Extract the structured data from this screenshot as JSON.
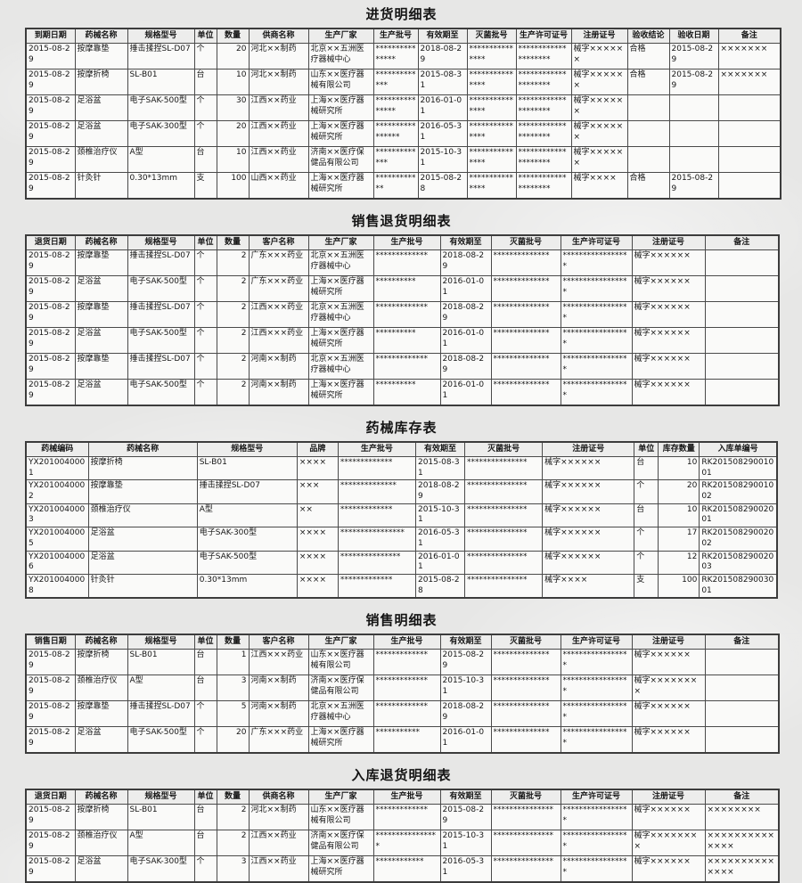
{
  "tables": [
    {
      "title": "进货明细表",
      "headers": [
        "到期日期",
        "药械名称",
        "规格型号",
        "单位",
        "数量",
        "供商名称",
        "生产厂家",
        "生产批号",
        "有效期至",
        "灭菌批号",
        "生产许可证号",
        "注册证号",
        "验收结论",
        "验收日期",
        "备注"
      ],
      "rows": [
        [
          "2015-08-29",
          "按摩靠垫",
          "捶击揉捏SL-D07",
          "个",
          "20",
          "河北××制药",
          "北京××五洲医疗器械中心",
          "***************",
          "2018-08-29",
          "***************",
          "********************",
          "械字××××××",
          "合格",
          "2015-08-29",
          "×××××××"
        ],
        [
          "2015-08-29",
          "按摩折椅",
          "SL-B01",
          "台",
          "10",
          "河北××制药",
          "山东××医疗器械有限公司",
          "*************",
          "2015-08-31",
          "***************",
          "********************",
          "械字××××××",
          "合格",
          "2015-08-29",
          "×××××××"
        ],
        [
          "2015-08-29",
          "足浴盆",
          "电子SAK-500型",
          "个",
          "30",
          "江西××药业",
          "上海××医疗器械研究所",
          "***************",
          "2016-01-01",
          "***************",
          "********************",
          "械字××××××",
          "",
          "",
          ""
        ],
        [
          "2015-08-29",
          "足浴盆",
          "电子SAK-300型",
          "个",
          "20",
          "江西××药业",
          "上海××医疗器械研究所",
          "****************",
          "2016-05-31",
          "***************",
          "********************",
          "械字××××××",
          "",
          "",
          ""
        ],
        [
          "2015-08-29",
          "颈椎治疗仪",
          "A型",
          "台",
          "10",
          "江西××药业",
          "济南××医疗保健品有限公司",
          "*************",
          "2015-10-31",
          "***************",
          "********************",
          "械字××××××",
          "",
          "",
          ""
        ],
        [
          "2015-08-29",
          "针灸针",
          "0.30*13mm",
          "支",
          "100",
          "山西××药业",
          "上海××医疗器械研究所",
          "************",
          "2015-08-28",
          "***************",
          "********************",
          "械字××××",
          "合格",
          "2015-08-29",
          ""
        ]
      ]
    },
    {
      "title": "销售退货明细表",
      "headers": [
        "退货日期",
        "药械名称",
        "规格型号",
        "单位",
        "数量",
        "客户名称",
        "生产厂家",
        "生产批号",
        "有效期至",
        "灭菌批号",
        "生产许可证号",
        "注册证号",
        "备注"
      ],
      "rows": [
        [
          "2015-08-29",
          "按摩靠垫",
          "捶击揉捏SL-D07",
          "个",
          "2",
          "广东×××药业",
          "北京××五洲医疗器械中心",
          "*************",
          "2018-08-29",
          "**************",
          "*****************",
          "械字××××××",
          ""
        ],
        [
          "2015-08-29",
          "足浴盆",
          "电子SAK-500型",
          "个",
          "2",
          "广东×××药业",
          "上海××医疗器械研究所",
          "**********",
          "2016-01-01",
          "**************",
          "*****************",
          "械字××××××",
          ""
        ],
        [
          "2015-08-29",
          "按摩靠垫",
          "捶击揉捏SL-D07",
          "个",
          "2",
          "江西×××药业",
          "北京××五洲医疗器械中心",
          "*************",
          "2018-08-29",
          "**************",
          "*****************",
          "械字××××××",
          ""
        ],
        [
          "2015-08-29",
          "足浴盆",
          "电子SAK-500型",
          "个",
          "2",
          "江西×××药业",
          "上海××医疗器械研究所",
          "**********",
          "2016-01-01",
          "**************",
          "*****************",
          "械字××××××",
          ""
        ],
        [
          "2015-08-29",
          "按摩靠垫",
          "捶击揉捏SL-D07",
          "个",
          "2",
          "河南××制药",
          "北京××五洲医疗器械中心",
          "*************",
          "2018-08-29",
          "**************",
          "*****************",
          "械字××××××",
          ""
        ],
        [
          "2015-08-29",
          "足浴盆",
          "电子SAK-500型",
          "个",
          "2",
          "河南××制药",
          "上海××医疗器械研究所",
          "**********",
          "2016-01-01",
          "**************",
          "*****************",
          "械字××××××",
          ""
        ]
      ]
    },
    {
      "title": "药械库存表",
      "headers": [
        "药械编码",
        "药械名称",
        "规格型号",
        "品牌",
        "生产批号",
        "有效期至",
        "灭菌批号",
        "注册证号",
        "单位",
        "库存数量",
        "入库单编号"
      ],
      "rows": [
        [
          "YX2010040001",
          "按摩折椅",
          "SL-B01",
          "××××",
          "*************",
          "2015-08-31",
          "***************",
          "械字××××××",
          "台",
          "10",
          "RK20150829001001"
        ],
        [
          "YX2010040002",
          "按摩靠垫",
          "捶击揉捏SL-D07",
          "×××",
          "**************",
          "2018-08-29",
          "***************",
          "械字××××××",
          "个",
          "20",
          "RK20150829001002"
        ],
        [
          "YX2010040003",
          "颈椎治疗仪",
          "A型",
          "××",
          "*************",
          "2015-10-31",
          "***************",
          "械字××××××",
          "台",
          "10",
          "RK20150829002001"
        ],
        [
          "YX2010040005",
          "足浴盆",
          "电子SAK-300型",
          "××××",
          "****************",
          "2016-05-31",
          "***************",
          "械字××××××",
          "个",
          "17",
          "RK20150829002002"
        ],
        [
          "YX2010040006",
          "足浴盆",
          "电子SAK-500型",
          "××××",
          "***************",
          "2016-01-01",
          "***************",
          "械字××××××",
          "个",
          "12",
          "RK20150829002003"
        ],
        [
          "YX2010040008",
          "针灸针",
          "0.30*13mm",
          "××××",
          "*************",
          "2015-08-28",
          "***************",
          "械字××××",
          "支",
          "100",
          "RK20150829003001"
        ]
      ]
    },
    {
      "title": "销售明细表",
      "headers": [
        "销售日期",
        "药械名称",
        "规格型号",
        "单位",
        "数量",
        "客户名称",
        "生产厂家",
        "生产批号",
        "有效期至",
        "灭菌批号",
        "生产许可证号",
        "注册证号",
        "备注"
      ],
      "rows": [
        [
          "2015-08-29",
          "按摩折椅",
          "SL-B01",
          "台",
          "1",
          "江西×××药业",
          "山东××医疗器械有限公司",
          "*************",
          "2015-08-29",
          "**************",
          "*****************",
          "械字××××××",
          ""
        ],
        [
          "2015-08-29",
          "颈椎治疗仪",
          "A型",
          "台",
          "3",
          "河南××制药",
          "济南××医疗保健品有限公司",
          "*************",
          "2015-10-31",
          "**************",
          "*****************",
          "械字××××××××",
          ""
        ],
        [
          "2015-08-29",
          "按摩靠垫",
          "捶击揉捏SL-D07",
          "个",
          "5",
          "河南××制药",
          "北京××五洲医疗器械中心",
          "*************",
          "2018-08-29",
          "**************",
          "*****************",
          "械字××××××",
          ""
        ],
        [
          "2015-08-29",
          "足浴盆",
          "电子SAK-500型",
          "个",
          "20",
          "广东×××药业",
          "上海××医疗器械研究所",
          "***********",
          "2016-01-01",
          "**************",
          "*****************",
          "械字××××××",
          ""
        ]
      ]
    },
    {
      "title": "入库退货明细表",
      "headers": [
        "退货日期",
        "药械名称",
        "规格型号",
        "单位",
        "数量",
        "供商名称",
        "生产厂家",
        "生产批号",
        "有效期至",
        "灭菌批号",
        "生产许可证号",
        "注册证号",
        "备注"
      ],
      "rows": [
        [
          "2015-08-29",
          "按摩折椅",
          "SL-B01",
          "台",
          "2",
          "河北××制药",
          "山东××医疗器械有限公司",
          "*************",
          "2015-08-29",
          "***************",
          "*****************",
          "械字××××××",
          "××××××××"
        ],
        [
          "2015-08-29",
          "颈椎治疗仪",
          "A型",
          "台",
          "2",
          "江西××药业",
          "济南××医疗保健品有限公司",
          "****************",
          "2015-10-31",
          "***************",
          "*****************",
          "械字××××××××",
          "××××××××××××××"
        ],
        [
          "2015-08-29",
          "足浴盆",
          "电子SAK-300型",
          "个",
          "3",
          "江西××药业",
          "上海××医疗器械研究所",
          "************",
          "2016-05-31",
          "***************",
          "*****************",
          "械字××××××",
          "××××××××××××××"
        ]
      ]
    }
  ]
}
